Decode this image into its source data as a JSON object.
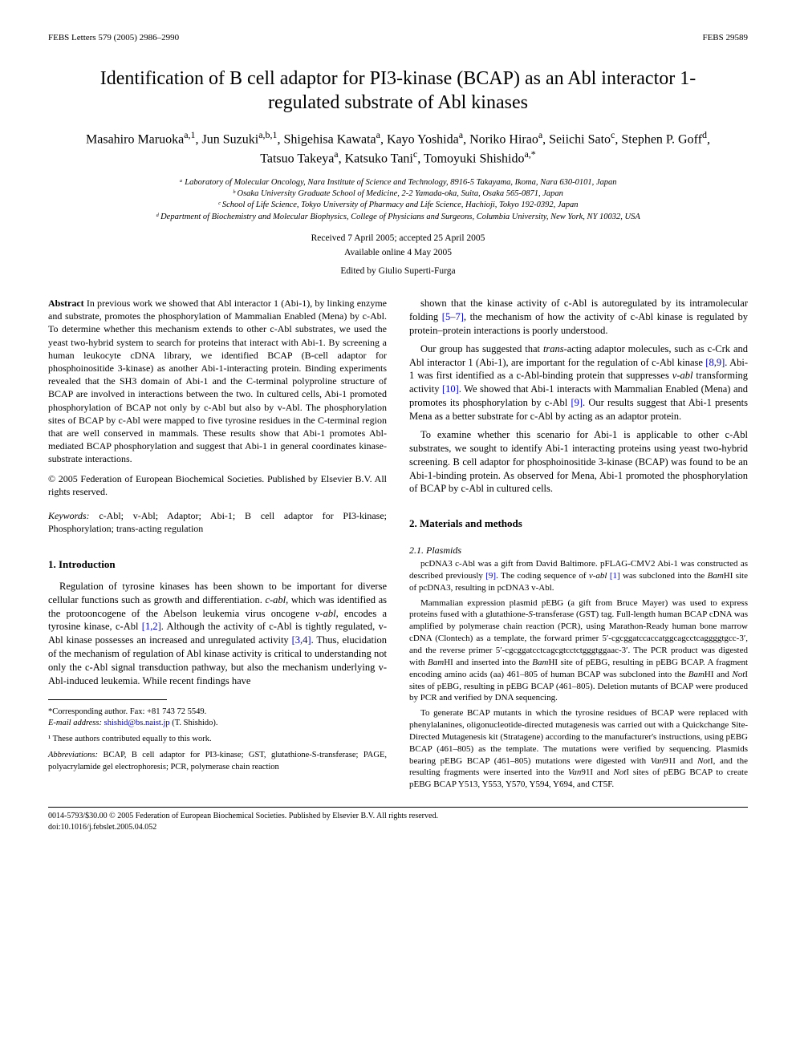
{
  "header": {
    "left": "FEBS Letters 579 (2005) 2986–2990",
    "right": "FEBS 29589"
  },
  "title": "Identification of B cell adaptor for PI3-kinase (BCAP) as an Abl interactor 1-regulated substrate of Abl kinases",
  "authors_html": "Masahiro Maruoka<sup>a,1</sup>, Jun Suzuki<sup>a,b,1</sup>, Shigehisa Kawata<sup>a</sup>, Kayo Yoshida<sup>a</sup>, Noriko Hirao<sup>a</sup>, Seiichi Sato<sup>c</sup>, Stephen P. Goff<sup>d</sup>, Tatsuo Takeya<sup>a</sup>, Katsuko Tani<sup>c</sup>, Tomoyuki Shishido<sup>a,*</sup>",
  "affiliations": [
    "ᵃ Laboratory of Molecular Oncology, Nara Institute of Science and Technology, 8916-5 Takayama, Ikoma, Nara 630-0101, Japan",
    "ᵇ Osaka University Graduate School of Medicine, 2-2 Yamada-oka, Suita, Osaka 565-0871, Japan",
    "ᶜ School of Life Science, Tokyo University of Pharmacy and Life Science, Hachioji, Tokyo 192-0392, Japan",
    "ᵈ Department of Biochemistry and Molecular Biophysics, College of Physicians and Surgeons, Columbia University, New York, NY 10032, USA"
  ],
  "dates": {
    "received": "Received 7 April 2005; accepted 25 April 2005",
    "online": "Available online 4 May 2005"
  },
  "editor": "Edited by Giulio Superti-Furga",
  "abstract_label": "Abstract",
  "abstract_text": "In previous work we showed that Abl interactor 1 (Abi-1), by linking enzyme and substrate, promotes the phosphorylation of Mammalian Enabled (Mena) by c-Abl. To determine whether this mechanism extends to other c-Abl substrates, we used the yeast two-hybrid system to search for proteins that interact with Abi-1. By screening a human leukocyte cDNA library, we identified BCAP (B-cell adaptor for phosphoinositide 3-kinase) as another Abi-1-interacting protein. Binding experiments revealed that the SH3 domain of Abi-1 and the C-terminal polyproline structure of BCAP are involved in interactions between the two. In cultured cells, Abi-1 promoted phosphorylation of BCAP not only by c-Abl but also by v-Abl. The phosphorylation sites of BCAP by c-Abl were mapped to five tyrosine residues in the C-terminal region that are well conserved in mammals. These results show that Abi-1 promotes Abl-mediated BCAP phosphorylation and suggest that Abi-1 in general coordinates kinase-substrate interactions.",
  "copyright": "© 2005 Federation of European Biochemical Societies. Published by Elsevier B.V. All rights reserved.",
  "keywords_label": "Keywords:",
  "keywords_text": "c-Abl; v-Abl; Adaptor; Abi-1; B cell adaptor for PI3-kinase; Phosphorylation; trans-acting regulation",
  "sections": {
    "intro_heading": "1. Introduction",
    "intro_p1_html": "Regulation of tyrosine kinases has been shown to be important for diverse cellular functions such as growth and differentiation. <i>c-abl</i>, which was identified as the protooncogene of the Abelson leukemia virus oncogene <i>v-abl</i>, encodes a tyrosine kinase, c-Abl <span class='ref-link'>[1,2]</span>. Although the activity of c-Abl is tightly regulated, v-Abl kinase possesses an increased and unregulated activity <span class='ref-link'>[3,4]</span>. Thus, elucidation of the mechanism of regulation of Abl kinase activity is critical to understanding not only the c-Abl signal transduction pathway, but also the mechanism underlying v-Abl-induced leukemia. While recent findings have",
    "col2_p1_html": "shown that the kinase activity of c-Abl is autoregulated by its intramolecular folding <span class='ref-link'>[5–7]</span>, the mechanism of how the activity of c-Abl kinase is regulated by protein–protein interactions is poorly understood.",
    "col2_p2_html": "Our group has suggested that <i>trans</i>-acting adaptor molecules, such as c-Crk and Abl interactor 1 (Abi-1), are important for the regulation of c-Abl kinase <span class='ref-link'>[8,9]</span>. Abi-1 was first identified as a c-Abl-binding protein that suppresses <i>v-abl</i> transforming activity <span class='ref-link'>[10]</span>. We showed that Abi-1 interacts with Mammalian Enabled (Mena) and promotes its phosphorylation by c-Abl <span class='ref-link'>[9]</span>. Our results suggest that Abi-1 presents Mena as a better substrate for c-Abl by acting as an adaptor protein.",
    "col2_p3_html": "To examine whether this scenario for Abi-1 is applicable to other c-Abl substrates, we sought to identify Abi-1 interacting proteins using yeast two-hybrid screening. B cell adaptor for phosphoinositide 3-kinase (BCAP) was found to be an Abi-1-binding protein. As observed for Mena, Abi-1 promoted the phosphorylation of BCAP by c-Abl in cultured cells.",
    "methods_heading": "2. Materials and methods",
    "plasmids_heading": "2.1. Plasmids",
    "methods_p1_html": "pcDNA3 c-Abl was a gift from David Baltimore. pFLAG-CMV2 Abi-1 was constructed as described previously <span class='ref-link'>[9]</span>. The coding sequence of <i>v-abl</i> <span class='ref-link'>[1]</span> was subcloned into the <i>Bam</i>HI site of pcDNA3, resulting in pcDNA3 v-Abl.",
    "methods_p2_html": "Mammalian expression plasmid pEBG (a gift from Bruce Mayer) was used to express proteins fused with a glutathione-<i>S</i>-transferase (GST) tag. Full-length human BCAP cDNA was amplified by polymerase chain reaction (PCR), using Marathon-Ready human bone marrow cDNA (Clontech) as a template, the forward primer 5′-cgcggatccaccatggcagcctcaggggtgcc-3′, and the reverse primer 5′-cgcggatcctcagcgtcctctgggtggaac-3′. The PCR product was digested with <i>Bam</i>HI and inserted into the <i>Bam</i>HI site of pEBG, resulting in pEBG BCAP. A fragment encoding amino acids (aa) 461–805 of human BCAP was subcloned into the <i>Bam</i>HI and <i>Not</i>I sites of pEBG, resulting in pEBG BCAP (461–805). Deletion mutants of BCAP were produced by PCR and verified by DNA sequencing.",
    "methods_p3_html": "To generate BCAP mutants in which the tyrosine residues of BCAP were replaced with phenylalanines, oligonucleotide-directed mutagenesis was carried out with a Quickchange Site-Directed Mutagenesis kit (Stratagene) according to the manufacturer's instructions, using pEBG BCAP (461–805) as the template. The mutations were verified by sequencing. Plasmids bearing pEBG BCAP (461–805) mutations were digested with <i>Van</i>91I and <i>Not</i>I, and the resulting fragments were inserted into the <i>Van</i>91I and <i>Not</i>I sites of pEBG BCAP to create pEBG BCAP Y513, Y553, Y570, Y594, Y694, and CT5F."
  },
  "footnotes": {
    "corresponding": "*Corresponding author. Fax: +81 743 72 5549.",
    "email_label": "E-mail address:",
    "email": "shishid@bs.naist.jp",
    "email_name": "(T. Shishido).",
    "equal": "¹ These authors contributed equally to this work.",
    "abbrev_label": "Abbreviations:",
    "abbrev_text": "BCAP, B cell adaptor for PI3-kinase; GST, glutathione-S-transferase; PAGE, polyacrylamide gel electrophoresis; PCR, polymerase chain reaction"
  },
  "bottom": {
    "line1": "0014-5793/$30.00 © 2005 Federation of European Biochemical Societies. Published by Elsevier B.V. All rights reserved.",
    "line2": "doi:10.1016/j.febslet.2005.04.052"
  }
}
